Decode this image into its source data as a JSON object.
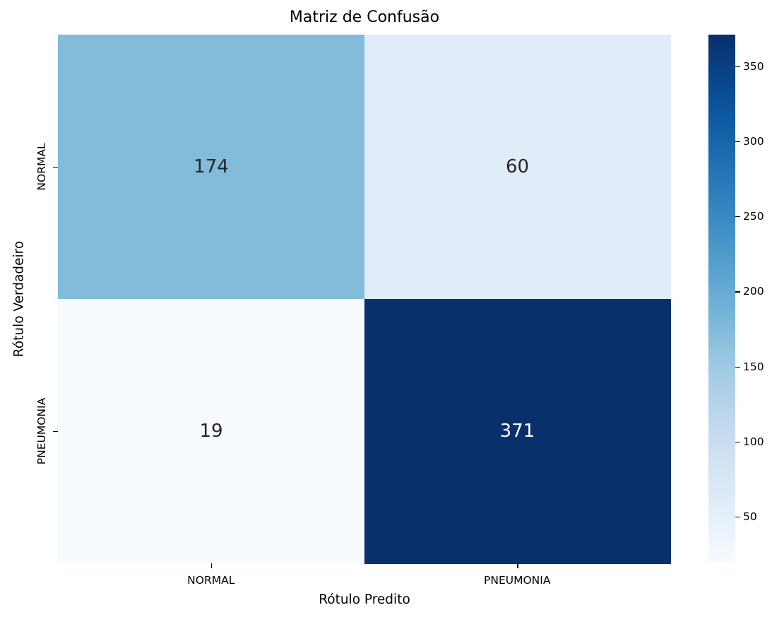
{
  "chart_data": {
    "type": "heatmap",
    "title": "Matriz de Confusão",
    "xlabel": "Rótulo Predito",
    "ylabel": "Rótulo Verdadeiro",
    "x_categories": [
      "NORMAL",
      "PNEUMONIA"
    ],
    "y_categories": [
      "NORMAL",
      "PNEUMONIA"
    ],
    "values": [
      [
        174,
        60
      ],
      [
        19,
        371
      ]
    ],
    "colormap": "Blues",
    "vmin": 19,
    "vmax": 371,
    "colorbar_ticks": [
      50,
      100,
      150,
      200,
      250,
      300,
      350
    ],
    "annotations": true,
    "grid": false
  },
  "colors": {
    "cell_0_0": "#84bcdb",
    "cell_0_1": "#dfebf7",
    "cell_1_0": "#f7fbff",
    "cell_1_1": "#08306b",
    "text_dark": "#262626",
    "text_light": "#ffffff"
  }
}
